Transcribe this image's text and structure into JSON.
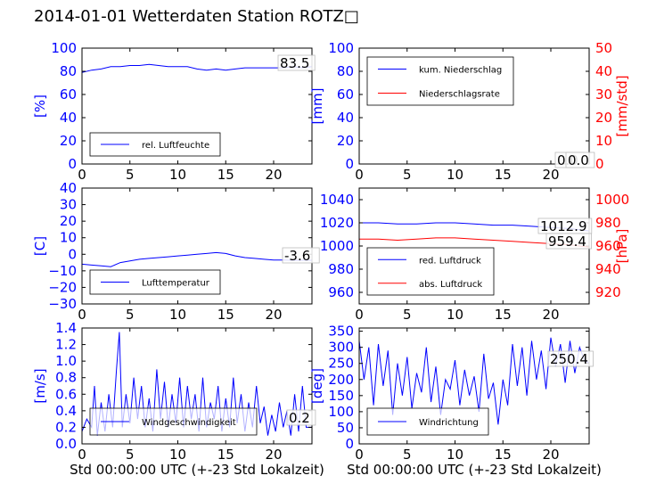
{
  "page": {
    "title": "2014-01-01 Wetterdaten Station ROTZ□"
  },
  "colors": {
    "series_blue": "#0000ff",
    "series_red": "#ff0000",
    "axis_black": "#000000"
  },
  "chart_data": [
    {
      "id": "humidity",
      "type": "line",
      "xlim": [
        0,
        24
      ],
      "xticks": [
        0,
        5,
        10,
        15,
        20
      ],
      "ylim": [
        0,
        100
      ],
      "yticks": [
        0,
        20,
        40,
        60,
        80,
        100
      ],
      "ylabel": "[%]",
      "ylabel_color": "#0000ff",
      "legend": {
        "position": "lower-left",
        "entries": [
          "rel. Luftfeuchte"
        ]
      },
      "value_label": "83.5",
      "series": [
        {
          "name": "rel. Luftfeuchte",
          "color": "#0000ff",
          "x": [
            0,
            1,
            2,
            3,
            4,
            5,
            6,
            7,
            8,
            9,
            10,
            11,
            12,
            13,
            14,
            15,
            16,
            17,
            18,
            19,
            20,
            21,
            22,
            23,
            24
          ],
          "y": [
            79,
            81,
            82,
            84,
            84,
            85,
            85,
            86,
            85,
            84,
            84,
            84,
            82,
            81,
            82,
            81,
            82,
            83,
            83,
            83,
            83,
            83,
            84,
            83,
            84
          ]
        }
      ]
    },
    {
      "id": "precipitation",
      "type": "line",
      "xlim": [
        0,
        24
      ],
      "xticks": [
        0,
        5,
        10,
        15,
        20
      ],
      "ylim": [
        0,
        100
      ],
      "yticks": [
        0,
        20,
        40,
        60,
        80,
        100
      ],
      "ylabel": "[mm]",
      "ylabel_color": "#0000ff",
      "y2lim": [
        0,
        50
      ],
      "y2ticks": [
        0,
        10,
        20,
        30,
        40,
        50
      ],
      "y2label": "[mm/std]",
      "y2label_color": "#ff0000",
      "legend": {
        "position": "upper-left",
        "entries": [
          "kum. Niederschlag",
          "Niederschlagsrate"
        ]
      },
      "value_labels": [
        "0.0",
        "0.0"
      ],
      "series": [
        {
          "name": "kum. Niederschlag",
          "color": "#0000ff",
          "axis": "left",
          "x": [
            0,
            24
          ],
          "y": [
            0,
            0
          ]
        },
        {
          "name": "Niederschlagsrate",
          "color": "#ff0000",
          "axis": "right",
          "x": [
            0,
            24
          ],
          "y": [
            0,
            0
          ]
        }
      ]
    },
    {
      "id": "temperature",
      "type": "line",
      "xlim": [
        0,
        24
      ],
      "xticks": [
        0,
        5,
        10,
        15,
        20
      ],
      "ylim": [
        -30,
        40
      ],
      "yticks": [
        -30,
        -20,
        -10,
        0,
        10,
        20,
        30,
        40
      ],
      "ylabel": "[C]",
      "ylabel_color": "#0000ff",
      "legend": {
        "position": "lower-left",
        "entries": [
          "Lufttemperatur"
        ]
      },
      "value_label": "-3.6",
      "series": [
        {
          "name": "Lufttemperatur",
          "color": "#0000ff",
          "x": [
            0,
            1,
            2,
            3,
            4,
            5,
            6,
            7,
            8,
            9,
            10,
            11,
            12,
            13,
            14,
            15,
            16,
            17,
            18,
            19,
            20,
            21,
            22,
            23,
            24
          ],
          "y": [
            -6,
            -6.5,
            -7,
            -7.5,
            -5,
            -4,
            -3,
            -2.5,
            -2,
            -1.5,
            -1,
            -0.5,
            0,
            0.5,
            1,
            0.5,
            -1,
            -2,
            -2.5,
            -3,
            -3.5,
            -3.5,
            -3.6,
            -3.6,
            -3.6
          ]
        }
      ]
    },
    {
      "id": "pressure",
      "type": "line",
      "xlim": [
        0,
        24
      ],
      "xticks": [
        0,
        5,
        10,
        15,
        20
      ],
      "ylim": [
        950,
        1050
      ],
      "yticks": [
        960,
        980,
        1000,
        1020,
        1040
      ],
      "ylabel": "",
      "y2lim": [
        910,
        1010
      ],
      "y2ticks": [
        920,
        940,
        960,
        980,
        1000
      ],
      "y2label": "[hPa]",
      "y2label_color": "#ff0000",
      "legend": {
        "position": "lower-left",
        "entries": [
          "red. Luftdruck",
          "abs. Luftdruck"
        ]
      },
      "value_labels": [
        "1012.9",
        "959.4"
      ],
      "series": [
        {
          "name": "red. Luftdruck",
          "color": "#0000ff",
          "axis": "left",
          "x": [
            0,
            2,
            4,
            6,
            8,
            10,
            12,
            14,
            16,
            18,
            20,
            22,
            24
          ],
          "y": [
            1020,
            1020,
            1019,
            1019,
            1020,
            1020,
            1019,
            1018,
            1018,
            1017,
            1016,
            1015,
            1013
          ]
        },
        {
          "name": "abs. Luftdruck",
          "color": "#ff0000",
          "axis": "right",
          "x": [
            0,
            2,
            4,
            6,
            8,
            10,
            12,
            14,
            16,
            18,
            20,
            22,
            24
          ],
          "y": [
            966,
            966,
            965,
            966,
            967,
            967,
            966,
            965,
            964,
            963,
            962,
            961,
            959
          ]
        }
      ]
    },
    {
      "id": "windspeed",
      "type": "line",
      "xlim": [
        0,
        24
      ],
      "xticks": [
        0,
        5,
        10,
        15,
        20
      ],
      "ylim": [
        0,
        1.4
      ],
      "yticks": [
        0.0,
        0.2,
        0.4,
        0.6,
        0.8,
        1.0,
        1.2,
        1.4
      ],
      "ylabel": "[m/s]",
      "ylabel_color": "#0000ff",
      "xlabel": "Std 00:00:00 UTC (+-23 Std Lokalzeit)",
      "legend": {
        "position": "lower-left",
        "entries": [
          "Windgeschwindigkeit"
        ]
      },
      "value_label": "0.2",
      "series": [
        {
          "name": "Windgeschwindigkeit",
          "color": "#0000ff",
          "x": [
            0,
            0.5,
            1,
            1.3,
            1.6,
            2,
            2.4,
            2.8,
            3.2,
            3.6,
            3.9,
            4.2,
            4.6,
            5,
            5.4,
            5.8,
            6.2,
            6.6,
            7,
            7.4,
            7.8,
            8.2,
            8.6,
            9,
            9.4,
            9.8,
            10.2,
            10.6,
            11,
            11.4,
            11.8,
            12.2,
            12.6,
            13,
            13.4,
            13.8,
            14.2,
            14.6,
            15,
            15.4,
            15.8,
            16.2,
            16.6,
            17,
            17.4,
            17.8,
            18.2,
            18.6,
            19,
            19.4,
            19.8,
            20.2,
            20.6,
            21,
            21.4,
            21.8,
            22.2,
            22.6,
            23,
            23.4,
            24
          ],
          "y": [
            0.15,
            0.3,
            0.2,
            0.7,
            0.1,
            0.5,
            0.15,
            0.6,
            0.2,
            0.9,
            1.35,
            0.2,
            0.6,
            0.25,
            0.8,
            0.3,
            0.7,
            0.2,
            0.55,
            0.15,
            0.9,
            0.3,
            0.75,
            0.2,
            0.6,
            0.25,
            0.8,
            0.2,
            0.7,
            0.3,
            0.6,
            0.15,
            0.8,
            0.2,
            0.5,
            0.3,
            0.7,
            0.15,
            0.55,
            0.2,
            0.8,
            0.25,
            0.6,
            0.15,
            0.5,
            0.2,
            0.7,
            0.25,
            0.45,
            0.1,
            0.35,
            0.15,
            0.5,
            0.2,
            0.4,
            0.1,
            0.6,
            0.15,
            0.7,
            0.2,
            0.2
          ]
        }
      ]
    },
    {
      "id": "winddirection",
      "type": "line",
      "xlim": [
        0,
        24
      ],
      "xticks": [
        0,
        5,
        10,
        15,
        20
      ],
      "ylim": [
        0,
        360
      ],
      "yticks": [
        0,
        50,
        100,
        150,
        200,
        250,
        300,
        350
      ],
      "ylabel": "[deg]",
      "ylabel_color": "#0000ff",
      "xlabel": "Std 00:00:00 UTC (+-23 Std Lokalzeit)",
      "legend": {
        "position": "lower-left",
        "entries": [
          "Windrichtung"
        ]
      },
      "value_label": "250.4",
      "series": [
        {
          "name": "Windrichtung",
          "color": "#0000ff",
          "x": [
            0,
            0.5,
            1,
            1.5,
            2,
            2.5,
            3,
            3.5,
            4,
            4.5,
            5,
            5.5,
            6,
            6.5,
            7,
            7.5,
            8,
            8.5,
            9,
            9.5,
            10,
            10.5,
            11,
            11.5,
            12,
            12.5,
            13,
            13.5,
            14,
            14.5,
            15,
            15.5,
            16,
            16.5,
            17,
            17.5,
            18,
            18.5,
            19,
            19.5,
            20,
            20.5,
            21,
            21.5,
            22,
            22.5,
            23,
            23.5,
            24
          ],
          "y": [
            320,
            200,
            300,
            120,
            310,
            180,
            290,
            90,
            250,
            150,
            270,
            110,
            220,
            160,
            300,
            130,
            240,
            90,
            200,
            170,
            260,
            120,
            230,
            150,
            210,
            100,
            280,
            140,
            190,
            60,
            200,
            120,
            310,
            180,
            300,
            150,
            320,
            200,
            290,
            170,
            330,
            240,
            310,
            190,
            320,
            220,
            300,
            260,
            250
          ]
        }
      ]
    }
  ]
}
